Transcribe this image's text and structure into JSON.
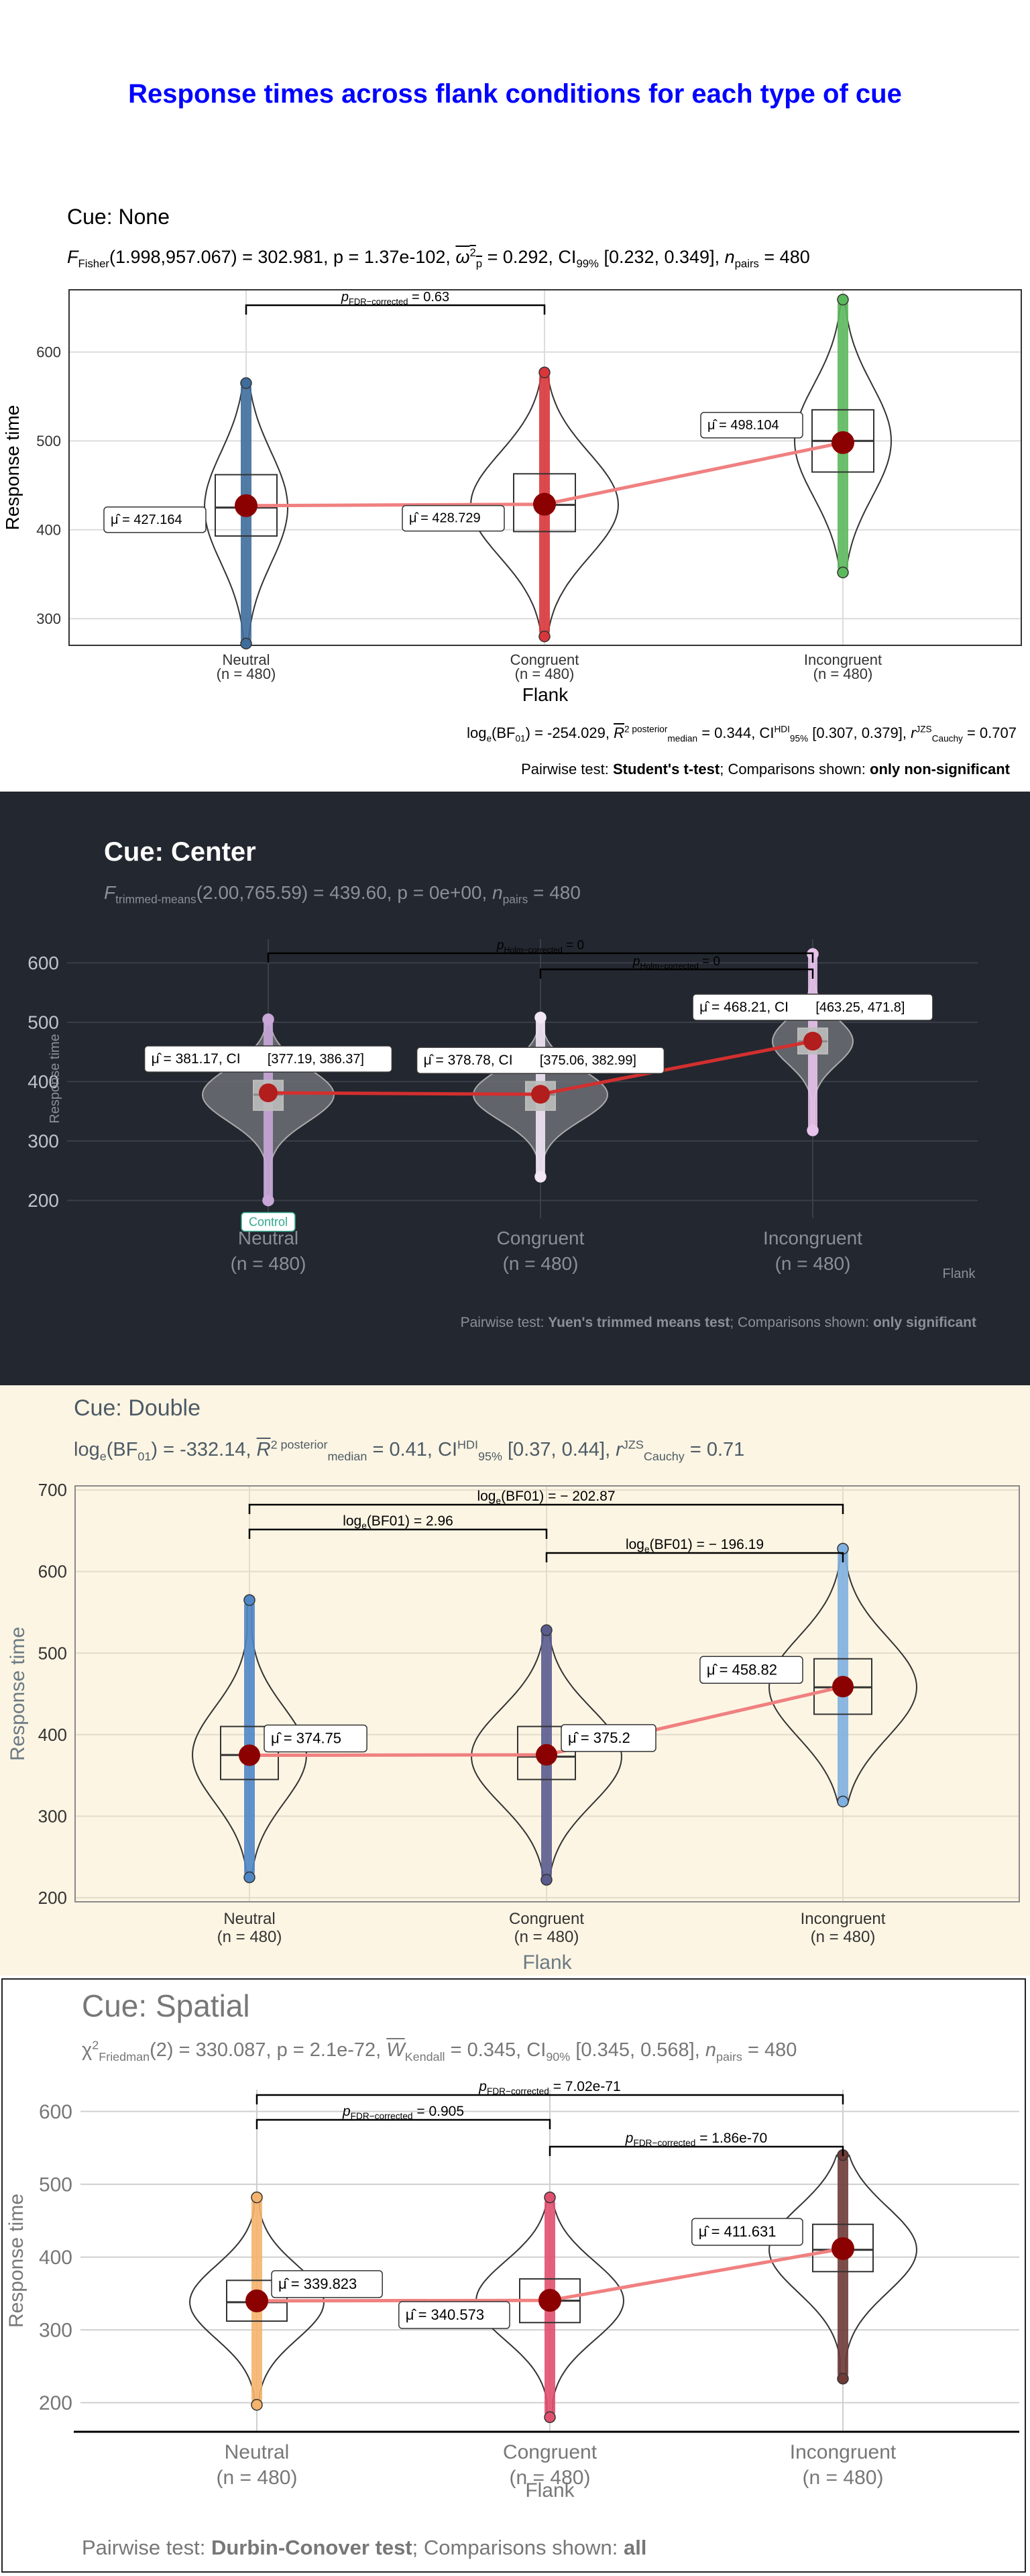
{
  "title": "Response times across flank conditions for each type of cue",
  "chart_data": [
    {
      "type": "violin-box",
      "title": "Cue: None",
      "subtitle": {
        "stat": "F",
        "stat_sub": "Fisher",
        "args": "(1.998,957.067) = 302.981, ",
        "p": "p = 1.37e-102, ",
        "effect": "ω",
        "effect_sup": "2",
        "effect_sub": "p",
        "effect_val": " = 0.292, CI",
        "ci_sub": "99%",
        "ci": " [0.232, 0.349], ",
        "n": "n",
        "n_sub": "pairs",
        "n_val": " = 480"
      },
      "xlabel": "Flank",
      "ylabel": "Response time",
      "ylim": [
        270,
        670
      ],
      "yticks": [
        300,
        400,
        500,
        600
      ],
      "categories": [
        "Neutral",
        "Congruent",
        "Incongruent"
      ],
      "n_labels": [
        "(n = 480)",
        "(n = 480)",
        "(n = 480)"
      ],
      "colors": [
        "#3f6d9b",
        "#d9363b",
        "#5cb85c"
      ],
      "min": [
        272,
        280,
        352
      ],
      "max": [
        565,
        577,
        659
      ],
      "q1": [
        393,
        398,
        465
      ],
      "median": [
        425,
        428,
        500
      ],
      "q3": [
        462,
        463,
        535
      ],
      "means": [
        427.164,
        428.729,
        498.104
      ],
      "mean_labels": [
        "427.164",
        "428.729",
        "498.104"
      ],
      "comparisons": [
        {
          "from": 0,
          "to": 1,
          "label_pre": "p",
          "label_sub": "FDR−corrected",
          "label_post": " = 0.63"
        }
      ],
      "caption_bf": {
        "pre": "log",
        "pre_sub": "e",
        "a": "(BF",
        "a_sub": "01",
        "b": ") = -254.029, ",
        "r2": "R",
        "r2_sup": "2 posterior",
        "r2_sub": "median",
        "c": " = 0.344, CI",
        "ci_sup": "HDI",
        "ci_sub": "95%",
        "d": " [0.307, 0.379], ",
        "r": "r",
        "r_sup": "JZS",
        "r_sub": "Cauchy",
        "e": " = 0.707"
      },
      "caption": {
        "pre": "Pairwise test: ",
        "test": "Student's t-test",
        "mid": "; Comparisons shown: ",
        "shown": "only non-significant"
      }
    },
    {
      "type": "violin-box",
      "title": "Cue: Center",
      "subtitle": {
        "stat": "F",
        "stat_sub": "trimmed-means",
        "args": "(2.00,765.59) = 439.60, ",
        "p": "p = 0e+00, ",
        "n": "n",
        "n_sub": "pairs",
        "n_val": " = 480"
      },
      "xlabel": "Flank",
      "ylabel": "Response time",
      "ylim": [
        170,
        640
      ],
      "yticks": [
        200,
        300,
        400,
        500,
        600
      ],
      "categories": [
        "Neutral",
        "Congruent",
        "Incongruent"
      ],
      "n_labels": [
        "(n = 480)",
        "(n = 480)",
        "(n = 480)"
      ],
      "colors": [
        "#c8a6d8",
        "#f3e6f7",
        "#e8c3ec"
      ],
      "min": [
        200,
        240,
        318
      ],
      "max": [
        505,
        508,
        615
      ],
      "q1": [
        352,
        352,
        447
      ],
      "median": [
        378,
        378,
        468
      ],
      "q3": [
        402,
        400,
        490
      ],
      "means": [
        381.17,
        378.78,
        468.21
      ],
      "mean_labels": [
        "381.17, CI",
        "378.78, CI",
        "468.21, CI"
      ],
      "mean_ci": [
        "[377.19, 386.37]",
        "[375.06, 382.99]",
        "[463.25, 471.8]"
      ],
      "outlier_label": "Control",
      "comparisons": [
        {
          "from": 0,
          "to": 2,
          "label_pre": "p",
          "label_sub": "Holm−corrected",
          "label_post": " = 0"
        },
        {
          "from": 1,
          "to": 2,
          "label_pre": "p",
          "label_sub": "Holm−corrected",
          "label_post": " = 0"
        }
      ],
      "caption": {
        "pre": "Pairwise test: ",
        "test": "Yuen's trimmed means test",
        "mid": "; Comparisons shown: ",
        "shown": "only significant"
      }
    },
    {
      "type": "violin-box",
      "title": "Cue: Double",
      "subtitle": {
        "pre": "log",
        "pre_sub": "e",
        "a": "(BF",
        "a_sub": "01",
        "b": ") = -332.14, ",
        "r2": "R",
        "r2_sup": "2 posterior",
        "r2_sub": "median",
        "c": " = 0.41, CI",
        "ci_sup": "HDI",
        "ci_sub": "95%",
        "d": " [0.37, 0.44], ",
        "r": "r",
        "r_sup": "JZS",
        "r_sub": "Cauchy",
        "e": " = 0.71"
      },
      "xlabel": "Flank",
      "ylabel": "Response time",
      "ylim": [
        195,
        705
      ],
      "yticks": [
        200,
        300,
        400,
        500,
        600,
        700
      ],
      "categories": [
        "Neutral",
        "Congruent",
        "Incongruent"
      ],
      "n_labels": [
        "(n = 480)",
        "(n = 480)",
        "(n = 480)"
      ],
      "colors": [
        "#4f86c6",
        "#5a5c8e",
        "#7fb0e0"
      ],
      "min": [
        225,
        222,
        318
      ],
      "max": [
        565,
        528,
        628
      ],
      "q1": [
        345,
        345,
        425
      ],
      "median": [
        375,
        373,
        458
      ],
      "q3": [
        410,
        410,
        493
      ],
      "means": [
        374.75,
        375.2,
        458.82
      ],
      "mean_labels": [
        "374.75",
        "375.2",
        "458.82"
      ],
      "comparisons": [
        {
          "from": 0,
          "to": 2,
          "label_pre": "log",
          "label_sub": "e",
          "label_post": "(BF01) = − 202.87"
        },
        {
          "from": 0,
          "to": 1,
          "label_pre": "log",
          "label_sub": "e",
          "label_post": "(BF01) = 2.96"
        },
        {
          "from": 1,
          "to": 2,
          "label_pre": "log",
          "label_sub": "e",
          "label_post": "(BF01) = − 196.19"
        }
      ]
    },
    {
      "type": "violin-box",
      "title": "Cue: Spatial",
      "subtitle": {
        "stat": "χ",
        "stat_sup": "2",
        "stat_sub": "Friedman",
        "args": "(2) = 330.087, ",
        "p": "p = 2.1e-72, ",
        "effect": "W",
        "effect_sub": "Kendall",
        "effect_val": " = 0.345, CI",
        "ci_sub": "90%",
        "ci": " [0.345, 0.568], ",
        "n": "n",
        "n_sub": "pairs",
        "n_val": " = 480"
      },
      "xlabel": "Flank",
      "ylabel": "Response time",
      "ylim": [
        160,
        630
      ],
      "yticks": [
        200,
        300,
        400,
        500,
        600
      ],
      "categories": [
        "Neutral",
        "Congruent",
        "Incongruent"
      ],
      "n_labels": [
        "(n = 480)",
        "(n = 480)",
        "(n = 480)"
      ],
      "colors": [
        "#f5b36b",
        "#e0506e",
        "#6e3b37"
      ],
      "min": [
        197,
        180,
        233
      ],
      "max": [
        482,
        482,
        540
      ],
      "q1": [
        312,
        310,
        380
      ],
      "median": [
        338,
        340,
        410
      ],
      "q3": [
        368,
        370,
        445
      ],
      "means": [
        339.823,
        340.573,
        411.631
      ],
      "mean_labels": [
        "339.823",
        "340.573",
        "411.631"
      ],
      "comparisons": [
        {
          "from": 0,
          "to": 2,
          "label_pre": "p",
          "label_sub": "FDR−corrected",
          "label_post": " = 7.02e-71"
        },
        {
          "from": 0,
          "to": 1,
          "label_pre": "p",
          "label_sub": "FDR−corrected",
          "label_post": " = 0.905"
        },
        {
          "from": 1,
          "to": 2,
          "label_pre": "p",
          "label_sub": "FDR−corrected",
          "label_post": " = 1.86e-70"
        }
      ],
      "caption": {
        "pre": "Pairwise test: ",
        "test": "Durbin-Conover test",
        "mid": "; Comparisons shown: ",
        "shown": "all"
      }
    }
  ]
}
